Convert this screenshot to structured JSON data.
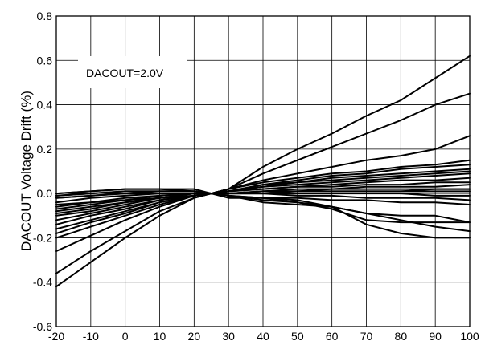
{
  "chart_data": {
    "type": "line",
    "title": "",
    "xlabel": "",
    "ylabel": "DACOUT Voltage Drift (%)",
    "xlim": [
      -20,
      100
    ],
    "ylim": [
      -0.6,
      0.8
    ],
    "grid": true,
    "annotation": "DACOUT=2.0V",
    "x_ticks": [
      -20,
      -10,
      0,
      10,
      20,
      30,
      40,
      50,
      60,
      70,
      80,
      90,
      100
    ],
    "x_tick_labels": [
      "-20",
      "-10",
      "0",
      "10",
      "20",
      "30",
      "40",
      "50",
      "60",
      "70",
      "80",
      "90",
      "100"
    ],
    "y_ticks": [
      -0.6,
      -0.4,
      -0.2,
      0.0,
      0.2,
      0.4,
      0.6,
      0.8
    ],
    "y_tick_labels": [
      "-0.6",
      "-0.4",
      "-0.2",
      "0.0",
      "0.2",
      "0.4",
      "0.6",
      "0.8"
    ],
    "x": [
      -20,
      -10,
      0,
      10,
      20,
      25,
      30,
      40,
      50,
      60,
      70,
      80,
      90,
      100
    ],
    "series": [
      {
        "values": [
          -0.42,
          -0.31,
          -0.2,
          -0.1,
          -0.02,
          0.0,
          0.02,
          0.12,
          0.2,
          0.27,
          0.35,
          0.42,
          0.52,
          0.62
        ]
      },
      {
        "values": [
          -0.36,
          -0.26,
          -0.17,
          -0.08,
          -0.02,
          0.0,
          0.02,
          0.09,
          0.15,
          0.21,
          0.27,
          0.33,
          0.4,
          0.45
        ]
      },
      {
        "values": [
          -0.26,
          -0.19,
          -0.12,
          -0.06,
          -0.01,
          0.0,
          0.02,
          0.06,
          0.09,
          0.12,
          0.15,
          0.17,
          0.2,
          0.26
        ]
      },
      {
        "values": [
          -0.2,
          -0.15,
          -0.1,
          -0.05,
          -0.01,
          0.0,
          0.02,
          0.05,
          0.07,
          0.09,
          0.1,
          0.12,
          0.13,
          0.15
        ]
      },
      {
        "values": [
          -0.18,
          -0.13,
          -0.09,
          -0.04,
          -0.01,
          0.0,
          0.01,
          0.04,
          0.06,
          0.08,
          0.09,
          0.11,
          0.12,
          0.13
        ]
      },
      {
        "values": [
          -0.16,
          -0.12,
          -0.08,
          -0.04,
          -0.01,
          0.0,
          0.01,
          0.04,
          0.05,
          0.07,
          0.08,
          0.09,
          0.1,
          0.11
        ]
      },
      {
        "values": [
          -0.14,
          -0.1,
          -0.07,
          -0.03,
          -0.01,
          0.0,
          0.01,
          0.03,
          0.05,
          0.06,
          0.07,
          0.08,
          0.09,
          0.1
        ]
      },
      {
        "values": [
          -0.12,
          -0.09,
          -0.06,
          -0.03,
          -0.01,
          0.0,
          0.01,
          0.03,
          0.04,
          0.05,
          0.06,
          0.07,
          0.08,
          0.09
        ]
      },
      {
        "values": [
          -0.1,
          -0.08,
          -0.05,
          -0.02,
          -0.01,
          0.0,
          0.01,
          0.02,
          0.03,
          0.04,
          0.05,
          0.06,
          0.06,
          0.07
        ]
      },
      {
        "values": [
          -0.09,
          -0.07,
          -0.04,
          -0.02,
          -0.01,
          0.0,
          0.01,
          0.02,
          0.03,
          0.03,
          0.04,
          0.04,
          0.05,
          0.05
        ]
      },
      {
        "values": [
          -0.08,
          -0.06,
          -0.04,
          -0.02,
          0.0,
          0.0,
          0.0,
          0.01,
          0.02,
          0.02,
          0.03,
          0.03,
          0.03,
          0.04
        ]
      },
      {
        "values": [
          -0.07,
          -0.05,
          -0.03,
          -0.02,
          0.0,
          0.0,
          0.0,
          0.01,
          0.01,
          0.02,
          0.02,
          0.02,
          0.02,
          0.02
        ]
      },
      {
        "values": [
          -0.06,
          -0.04,
          -0.03,
          -0.01,
          0.0,
          0.0,
          0.0,
          0.01,
          0.01,
          0.01,
          0.01,
          0.01,
          0.02,
          0.02
        ]
      },
      {
        "values": [
          -0.05,
          -0.04,
          -0.02,
          -0.01,
          0.0,
          0.0,
          0.0,
          0.0,
          0.01,
          0.01,
          0.01,
          0.01,
          0.01,
          0.01
        ]
      },
      {
        "values": [
          -0.04,
          -0.02,
          -0.01,
          0.0,
          0.0,
          0.0,
          0.0,
          0.0,
          0.0,
          0.0,
          0.0,
          0.0,
          -0.01,
          -0.01
        ]
      },
      {
        "values": [
          -0.02,
          -0.01,
          0.0,
          0.0,
          0.0,
          0.0,
          0.0,
          0.0,
          -0.01,
          -0.01,
          -0.02,
          -0.02,
          -0.02,
          -0.03
        ]
      },
      {
        "values": [
          -0.01,
          0.0,
          0.01,
          0.01,
          0.01,
          0.0,
          -0.01,
          -0.02,
          -0.02,
          -0.03,
          -0.03,
          -0.04,
          -0.04,
          -0.05
        ]
      },
      {
        "values": [
          0.0,
          0.01,
          0.02,
          0.02,
          0.01,
          0.0,
          -0.01,
          -0.03,
          -0.04,
          -0.06,
          -0.09,
          -0.1,
          -0.1,
          -0.13
        ]
      },
      {
        "values": [
          -0.01,
          0.0,
          0.01,
          0.01,
          0.01,
          0.0,
          -0.01,
          -0.02,
          -0.04,
          -0.07,
          -0.12,
          -0.13,
          -0.13,
          -0.13
        ]
      },
      {
        "values": [
          0.0,
          0.01,
          0.02,
          0.02,
          0.02,
          0.0,
          -0.02,
          -0.02,
          -0.03,
          -0.06,
          -0.14,
          -0.18,
          -0.2,
          -0.2
        ]
      },
      {
        "values": [
          -0.02,
          -0.01,
          0.0,
          0.01,
          0.01,
          0.0,
          -0.01,
          -0.04,
          -0.05,
          -0.06,
          -0.09,
          -0.12,
          -0.15,
          -0.17
        ]
      }
    ]
  }
}
